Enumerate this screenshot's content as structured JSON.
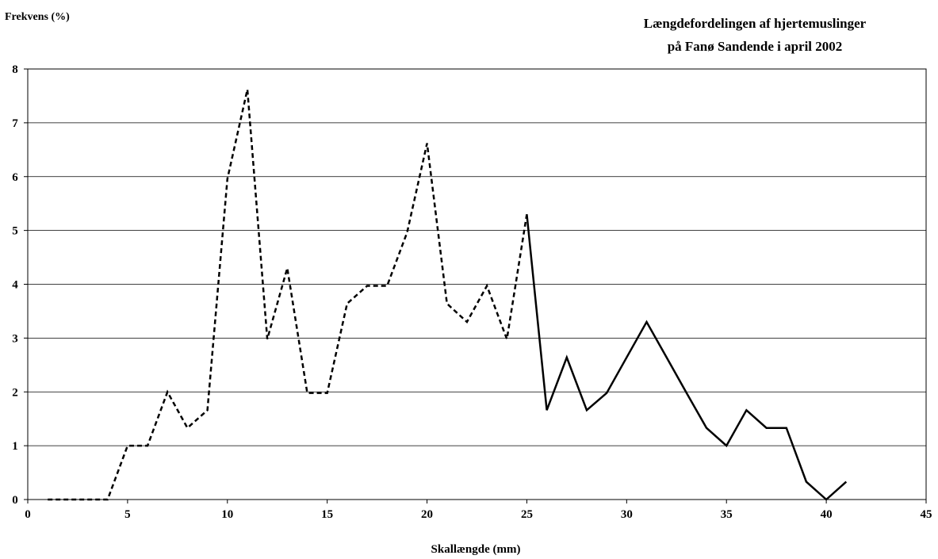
{
  "chart_data": {
    "type": "line",
    "title_lines": [
      "Længdefordelingen af hjertemuslinger",
      "på Fanø Sandende i april 2002"
    ],
    "xlabel": "Skallængde (mm)",
    "ylabel": "Frekvens (%)",
    "xlim": [
      0,
      45
    ],
    "ylim": [
      0,
      8
    ],
    "x_ticks": [
      "0",
      "5",
      "10",
      "15",
      "20",
      "25",
      "30",
      "35",
      "40",
      "45"
    ],
    "y_ticks": [
      "0",
      "1",
      "2",
      "3",
      "4",
      "5",
      "6",
      "7",
      "8"
    ],
    "grid": "horizontal",
    "series": [
      {
        "style": "dashed",
        "color": "#000000",
        "x": [
          1,
          2,
          3,
          4,
          5,
          6,
          7,
          8,
          9,
          10,
          11,
          12,
          13,
          14,
          15,
          16,
          17,
          18,
          19,
          20,
          21,
          22,
          23,
          24,
          25
        ],
        "y": [
          0,
          0,
          0,
          0,
          1.0,
          1.0,
          2.0,
          1.33,
          1.66,
          5.96,
          7.62,
          2.98,
          4.3,
          1.98,
          1.98,
          3.64,
          3.97,
          3.97,
          4.96,
          6.62,
          3.64,
          3.3,
          3.97,
          2.98,
          5.3
        ]
      },
      {
        "style": "solid",
        "color": "#000000",
        "x": [
          25,
          26,
          27,
          28,
          29,
          30,
          31,
          32,
          33,
          34,
          35,
          36,
          37,
          38,
          39,
          40,
          41
        ],
        "y": [
          5.3,
          1.66,
          2.64,
          1.66,
          1.98,
          2.64,
          3.3,
          2.64,
          1.98,
          1.33,
          1.0,
          1.66,
          1.33,
          1.33,
          0.33,
          0,
          0.33
        ]
      }
    ]
  }
}
